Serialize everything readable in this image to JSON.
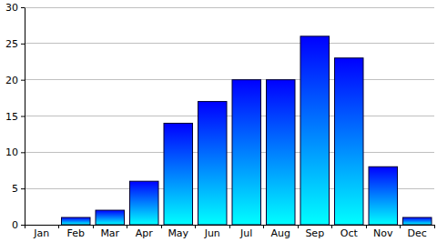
{
  "chart_data": {
    "type": "bar",
    "categories": [
      "Jan",
      "Feb",
      "Mar",
      "Apr",
      "May",
      "Jun",
      "Jul",
      "Aug",
      "Sep",
      "Oct",
      "Nov",
      "Dec"
    ],
    "values": [
      0,
      1,
      2,
      6,
      14,
      17,
      20,
      20,
      26,
      23,
      8,
      1
    ],
    "color": "#0000ff",
    "ylim": [
      0,
      30
    ],
    "yticks": [
      0,
      5,
      10,
      15,
      20,
      25,
      30
    ],
    "grid": true
  }
}
